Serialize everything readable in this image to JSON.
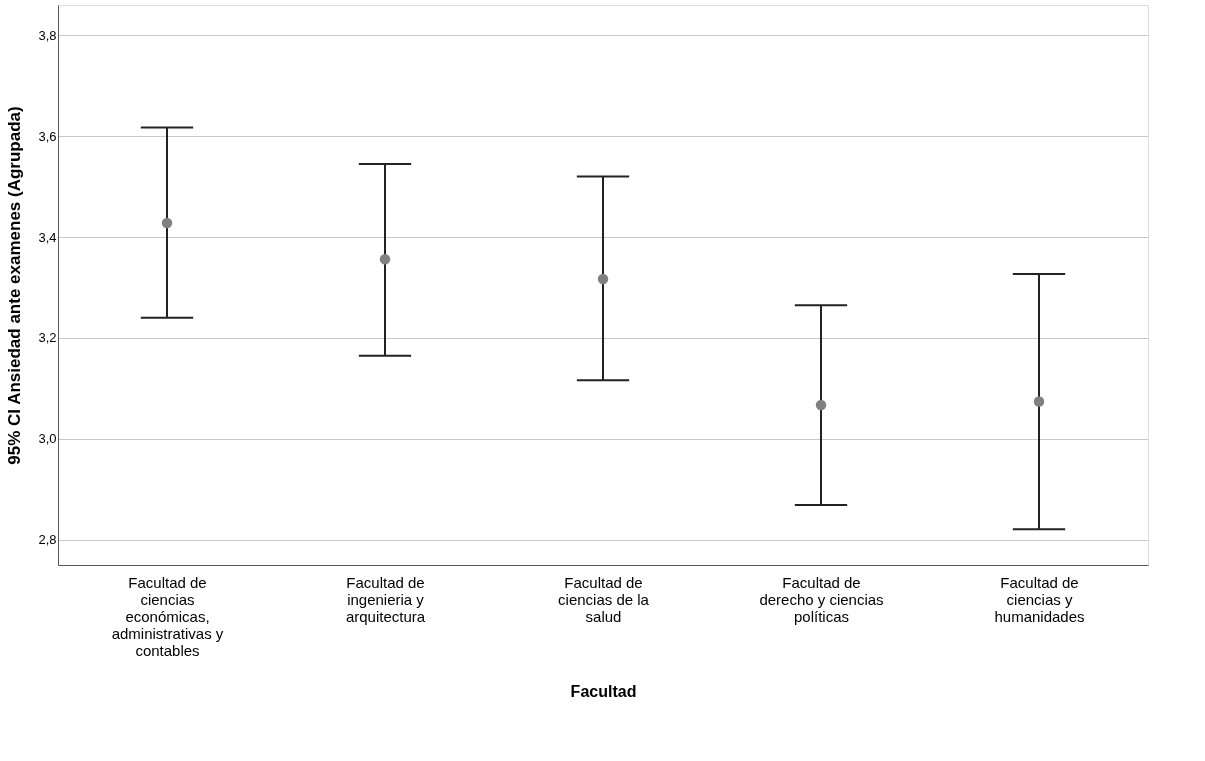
{
  "chart_data": {
    "type": "scatter",
    "xlabel": "Facultad",
    "ylabel": "95% CI Ansiedad ante examenes (Agrupada)",
    "categories": [
      "Facultad de ciencias económicas, administrativas y contables",
      "Facultad de ingenieria y arquitectura",
      "Facultad de ciencias de la salud",
      "Facultad de derecho y ciencias políticas",
      "Facultad de ciencias y humanidades"
    ],
    "values": [
      3.428,
      3.356,
      3.317,
      3.067,
      3.074
    ],
    "errors": [
      [
        3.24,
        3.617
      ],
      [
        3.165,
        3.545
      ],
      [
        3.116,
        3.52
      ],
      [
        2.869,
        3.265
      ],
      [
        2.821,
        3.327
      ]
    ],
    "color": "#808080",
    "ylim": [
      2.75,
      3.86
    ],
    "yticks": [
      {
        "value": 2.8,
        "label": "2,8"
      },
      {
        "value": 3.0,
        "label": "3,0"
      },
      {
        "value": 3.2,
        "label": "3,2"
      },
      {
        "value": 3.4,
        "label": "3,4"
      },
      {
        "value": 3.6,
        "label": "3,6"
      },
      {
        "value": 3.8,
        "label": "3,8"
      }
    ],
    "grid": "y",
    "marker": "circle",
    "legend": false
  }
}
